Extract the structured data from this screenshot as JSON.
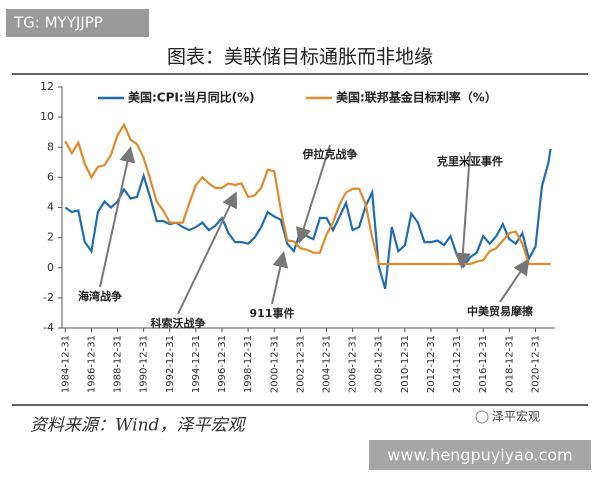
{
  "header": {
    "tag": "TG: MYYJJPP",
    "watermark": "www.hengpuyiyao.com",
    "brand": "泽平宏观"
  },
  "chart_data": {
    "type": "line",
    "title": "图表：美联储目标通胀而非地缘",
    "source": "资料来源：Wind，泽平宏观",
    "x": [
      "1984-12-31",
      "1985-06-30",
      "1985-12-31",
      "1986-06-30",
      "1986-12-31",
      "1987-06-30",
      "1987-12-31",
      "1988-06-30",
      "1988-12-31",
      "1989-06-30",
      "1989-12-31",
      "1990-06-30",
      "1990-12-31",
      "1991-06-30",
      "1991-12-31",
      "1992-06-30",
      "1992-12-31",
      "1993-06-30",
      "1993-12-31",
      "1994-06-30",
      "1994-12-31",
      "1995-06-30",
      "1995-12-31",
      "1996-06-30",
      "1996-12-31",
      "1997-06-30",
      "1997-12-31",
      "1998-06-30",
      "1998-12-31",
      "1999-06-30",
      "1999-12-31",
      "2000-06-30",
      "2000-12-31",
      "2001-06-30",
      "2001-12-31",
      "2002-06-30",
      "2002-12-31",
      "2003-06-30",
      "2003-12-31",
      "2004-06-30",
      "2004-12-31",
      "2005-06-30",
      "2005-12-31",
      "2006-06-30",
      "2006-12-31",
      "2007-06-30",
      "2007-12-31",
      "2008-06-30",
      "2008-12-31",
      "2009-06-30",
      "2009-12-31",
      "2010-06-30",
      "2010-12-31",
      "2011-06-30",
      "2011-12-31",
      "2012-06-30",
      "2012-12-31",
      "2013-06-30",
      "2013-12-31",
      "2014-06-30",
      "2014-12-31",
      "2015-06-30",
      "2015-12-31",
      "2016-06-30",
      "2016-12-31",
      "2017-06-30",
      "2017-12-31",
      "2018-06-30",
      "2018-12-31",
      "2019-06-30",
      "2019-12-31",
      "2020-06-30",
      "2020-12-31",
      "2021-06-30",
      "2021-12-31",
      "2022-02-28"
    ],
    "series": [
      {
        "name": "美国:CPI:当月同比(%)",
        "color": "#1f6db3",
        "values": [
          4.0,
          3.7,
          3.8,
          1.7,
          1.1,
          3.7,
          4.4,
          4.0,
          4.4,
          5.2,
          4.6,
          4.7,
          6.1,
          4.7,
          3.1,
          3.1,
          2.9,
          3.0,
          2.7,
          2.5,
          2.7,
          3.0,
          2.5,
          2.8,
          3.3,
          2.3,
          1.7,
          1.7,
          1.6,
          2.0,
          2.7,
          3.7,
          3.4,
          3.2,
          1.6,
          1.1,
          2.4,
          2.1,
          1.9,
          3.3,
          3.3,
          2.5,
          3.4,
          4.3,
          2.5,
          2.7,
          4.1,
          5.0,
          0.1,
          -1.4,
          2.7,
          1.1,
          1.5,
          3.6,
          3.0,
          1.7,
          1.7,
          1.8,
          1.5,
          2.1,
          0.8,
          0.1,
          0.7,
          1.0,
          2.1,
          1.6,
          2.1,
          2.9,
          1.9,
          1.6,
          2.3,
          0.6,
          1.4,
          5.4,
          7.0,
          7.9
        ]
      },
      {
        "name": "美国:联邦基金目标利率（%）",
        "color": "#e08a2c",
        "values": [
          8.4,
          7.6,
          8.3,
          6.9,
          6.0,
          6.7,
          6.8,
          7.5,
          8.8,
          9.5,
          8.5,
          8.2,
          7.3,
          5.9,
          4.4,
          3.8,
          3.0,
          3.0,
          3.0,
          4.3,
          5.5,
          6.0,
          5.6,
          5.3,
          5.3,
          5.6,
          5.5,
          5.6,
          4.7,
          4.8,
          5.3,
          6.5,
          6.4,
          3.9,
          1.8,
          1.75,
          1.3,
          1.2,
          1.0,
          1.0,
          2.2,
          3.0,
          4.2,
          5.0,
          5.25,
          5.25,
          4.2,
          2.0,
          0.25,
          0.25,
          0.25,
          0.25,
          0.25,
          0.25,
          0.25,
          0.25,
          0.25,
          0.25,
          0.25,
          0.25,
          0.25,
          0.25,
          0.25,
          0.4,
          0.5,
          1.1,
          1.3,
          1.8,
          2.3,
          2.4,
          1.6,
          0.25,
          0.25,
          0.25,
          0.25,
          0.25
        ]
      }
    ],
    "xlim": [
      "1984-09-30",
      "2022-06-30"
    ],
    "xticks": [
      "1984-12-31",
      "1986-12-31",
      "1988-12-31",
      "1990-12-31",
      "1992-12-31",
      "1994-12-31",
      "1996-12-31",
      "1998-12-31",
      "2000-12-31",
      "2002-12-31",
      "2004-12-31",
      "2006-12-31",
      "2008-12-31",
      "2010-12-31",
      "2012-12-31",
      "2014-12-31",
      "2016-12-31",
      "2018-12-31",
      "2020-12-31"
    ],
    "ylim": [
      -4,
      12
    ],
    "yticks": [
      -4,
      -2,
      0,
      2,
      4,
      6,
      8,
      10,
      12
    ],
    "annotations": [
      {
        "text": "海湾战争"
      },
      {
        "text": "科索沃战争"
      },
      {
        "text": "911事件"
      },
      {
        "text": "伊拉克战争"
      },
      {
        "text": "克里米亚事件"
      },
      {
        "text": "中美贸易摩擦"
      }
    ]
  }
}
